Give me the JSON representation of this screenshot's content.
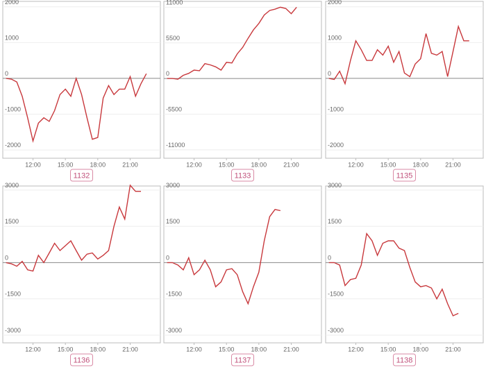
{
  "chart_data": [
    {
      "type": "line",
      "title": "1132",
      "color": "#c8383c",
      "x": [
        9.5,
        10,
        10.5,
        11,
        11.5,
        12,
        12.5,
        13,
        13.5,
        14,
        14.5,
        15,
        15.5,
        16,
        16.5,
        17,
        17.5,
        18,
        18.5,
        19,
        19.5,
        20,
        20.5,
        21,
        21.5,
        22,
        22.5
      ],
      "values": [
        0,
        -20,
        -100,
        -500,
        -1100,
        -1750,
        -1250,
        -1100,
        -1200,
        -900,
        -450,
        -300,
        -500,
        0,
        -450,
        -1100,
        -1700,
        -1650,
        -550,
        -200,
        -450,
        -300,
        -300,
        50,
        -500,
        -150,
        130
      ],
      "xlim": [
        9.2,
        23.8
      ],
      "ylim": [
        -2230,
        2150
      ],
      "xticks": [
        {
          "value": 12,
          "label": "12:00"
        },
        {
          "value": 15,
          "label": "15:00"
        },
        {
          "value": 18,
          "label": "18:00"
        },
        {
          "value": 21,
          "label": "21:00"
        }
      ],
      "yticks": [
        -2000,
        -1000,
        0,
        1000,
        2000
      ],
      "grid": true
    },
    {
      "type": "line",
      "title": "1133",
      "color": "#c8383c",
      "x": [
        9.5,
        10,
        10.5,
        11,
        11.5,
        12,
        12.5,
        13,
        13.5,
        14,
        14.5,
        15,
        15.5,
        16,
        16.5,
        17,
        17.5,
        18,
        18.5,
        19,
        19.5,
        20,
        20.5,
        21,
        21.5
      ],
      "values": [
        0,
        0,
        -100,
        500,
        800,
        1300,
        1200,
        2300,
        2100,
        1800,
        1300,
        2500,
        2400,
        3800,
        4800,
        6200,
        7500,
        8500,
        9800,
        10500,
        10700,
        11000,
        10800,
        10000,
        11000
      ],
      "xlim": [
        9.2,
        23.8
      ],
      "ylim": [
        -12300,
        11900
      ],
      "xticks": [
        {
          "value": 12,
          "label": "12:00"
        },
        {
          "value": 15,
          "label": "15:00"
        },
        {
          "value": 18,
          "label": "18:00"
        },
        {
          "value": 21,
          "label": "21:00"
        }
      ],
      "yticks": [
        -11000,
        -5500,
        0,
        5500,
        11000
      ],
      "grid": true
    },
    {
      "type": "line",
      "title": "1135",
      "color": "#c8383c",
      "x": [
        9.5,
        10,
        10.5,
        11,
        11.5,
        12,
        12.5,
        13,
        13.5,
        14,
        14.5,
        15,
        15.5,
        16,
        16.5,
        17,
        17.5,
        18,
        18.5,
        19,
        19.5,
        20,
        20.5,
        21,
        21.5,
        22,
        22.5
      ],
      "values": [
        0,
        -30,
        200,
        -150,
        500,
        1050,
        800,
        500,
        500,
        800,
        650,
        900,
        450,
        750,
        150,
        50,
        400,
        550,
        1250,
        700,
        650,
        750,
        50,
        750,
        1450,
        1050,
        1050
      ],
      "xlim": [
        9.2,
        23.8
      ],
      "ylim": [
        -2230,
        2150
      ],
      "xticks": [
        {
          "value": 12,
          "label": "12:00"
        },
        {
          "value": 15,
          "label": "15:00"
        },
        {
          "value": 18,
          "label": "18:00"
        },
        {
          "value": 21,
          "label": "21:00"
        }
      ],
      "yticks": [
        -2000,
        -1000,
        0,
        1000,
        2000
      ],
      "grid": true
    },
    {
      "type": "line",
      "title": "1136",
      "color": "#c8383c",
      "x": [
        9.5,
        10,
        10.5,
        11,
        11.5,
        12,
        12.5,
        13,
        13.5,
        14,
        14.5,
        15,
        15.5,
        16,
        16.5,
        17,
        17.5,
        18,
        18.5,
        19,
        19.5,
        20,
        20.5,
        21,
        21.5,
        22
      ],
      "values": [
        0,
        -50,
        -150,
        50,
        -300,
        -350,
        300,
        0,
        400,
        800,
        500,
        700,
        900,
        500,
        100,
        350,
        400,
        150,
        300,
        500,
        1500,
        2300,
        1800,
        3200,
        2950,
        2950
      ],
      "xlim": [
        9.2,
        23.8
      ],
      "ylim": [
        -3320,
        3170
      ],
      "xticks": [
        {
          "value": 12,
          "label": "12:00"
        },
        {
          "value": 15,
          "label": "15:00"
        },
        {
          "value": 18,
          "label": "18:00"
        },
        {
          "value": 21,
          "label": "21:00"
        }
      ],
      "yticks": [
        -3000,
        -1500,
        0,
        1500,
        3000
      ],
      "grid": true
    },
    {
      "type": "line",
      "title": "1137",
      "color": "#c8383c",
      "x": [
        9.5,
        10,
        10.5,
        11,
        11.5,
        12,
        12.5,
        13,
        13.5,
        14,
        14.5,
        15,
        15.5,
        16,
        16.5,
        17,
        17.5,
        18,
        18.5,
        19,
        19.5,
        20
      ],
      "values": [
        0,
        0,
        -100,
        -300,
        200,
        -500,
        -300,
        100,
        -300,
        -1000,
        -800,
        -300,
        -250,
        -500,
        -1200,
        -1700,
        -1000,
        -400,
        900,
        1900,
        2200,
        2150
      ],
      "xlim": [
        9.2,
        23.8
      ],
      "ylim": [
        -3320,
        3170
      ],
      "xticks": [
        {
          "value": 12,
          "label": "12:00"
        },
        {
          "value": 15,
          "label": "15:00"
        },
        {
          "value": 18,
          "label": "18:00"
        },
        {
          "value": 21,
          "label": "21:00"
        }
      ],
      "yticks": [
        -3000,
        -1500,
        0,
        1500,
        3000
      ],
      "grid": true
    },
    {
      "type": "line",
      "title": "1138",
      "color": "#c8383c",
      "x": [
        9.5,
        10,
        10.5,
        11,
        11.5,
        12,
        12.5,
        13,
        13.5,
        14,
        14.5,
        15,
        15.5,
        16,
        16.5,
        17,
        17.5,
        18,
        18.5,
        19,
        19.5,
        20,
        20.5,
        21,
        21.5
      ],
      "values": [
        0,
        0,
        -100,
        -950,
        -700,
        -650,
        -100,
        1200,
        900,
        300,
        800,
        900,
        900,
        600,
        500,
        -200,
        -800,
        -1000,
        -950,
        -1050,
        -1500,
        -1100,
        -1700,
        -2200,
        -2100
      ],
      "xlim": [
        9.2,
        23.8
      ],
      "ylim": [
        -3320,
        3170
      ],
      "xticks": [
        {
          "value": 12,
          "label": "12:00"
        },
        {
          "value": 15,
          "label": "15:00"
        },
        {
          "value": 18,
          "label": "18:00"
        },
        {
          "value": 21,
          "label": "21:00"
        }
      ],
      "yticks": [
        -3000,
        -1500,
        0,
        1500,
        3000
      ],
      "grid": true
    }
  ]
}
